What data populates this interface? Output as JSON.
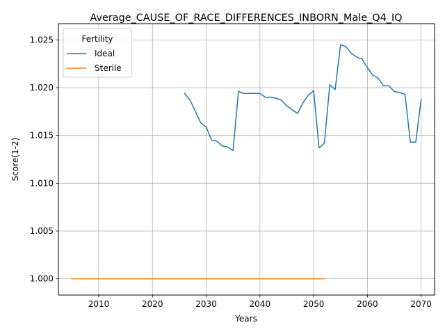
{
  "chart_data": {
    "type": "line",
    "title": "Average_CAUSE_OF_RACE_DIFFERENCES_INBORN_Male_Q4_IQ",
    "xlabel": "Years",
    "ylabel": "Score(1-2)",
    "xlim": [
      2002.5,
      2072.5
    ],
    "ylim": [
      0.9983,
      1.0267
    ],
    "xticks": [
      2010,
      2020,
      2030,
      2040,
      2050,
      2060,
      2070
    ],
    "yticks": [
      1.0,
      1.005,
      1.01,
      1.015,
      1.02,
      1.025
    ],
    "ytick_labels": [
      "1.000",
      "1.005",
      "1.010",
      "1.015",
      "1.020",
      "1.025"
    ],
    "grid": true,
    "legend": {
      "title": "Fertility",
      "placement": "upper-left"
    },
    "series": [
      {
        "name": "Ideal",
        "color": "#1f77b4",
        "x": [
          2026,
          2027,
          2028,
          2029,
          2030,
          2031,
          2032,
          2033,
          2034,
          2035,
          2036,
          2037,
          2038,
          2039,
          2040,
          2041,
          2042,
          2043,
          2044,
          2045,
          2046,
          2047,
          2048,
          2049,
          2050,
          2051,
          2052,
          2053,
          2054,
          2055,
          2056,
          2057,
          2058,
          2059,
          2060,
          2061,
          2062,
          2063,
          2064,
          2065,
          2066,
          2067,
          2068,
          2069,
          2070
        ],
        "y": [
          1.0194,
          1.0187,
          1.0175,
          1.0163,
          1.0159,
          1.0145,
          1.0144,
          1.0139,
          1.0138,
          1.0134,
          1.0196,
          1.0194,
          1.0194,
          1.0194,
          1.0194,
          1.019,
          1.019,
          1.0189,
          1.0187,
          1.0181,
          1.0177,
          1.0173,
          1.0184,
          1.0192,
          1.0197,
          1.0137,
          1.0142,
          1.0203,
          1.0198,
          1.0245,
          1.0243,
          1.0236,
          1.0232,
          1.023,
          1.0221,
          1.0213,
          1.021,
          1.0202,
          1.0202,
          1.0196,
          1.0195,
          1.0193,
          1.0143,
          1.0143,
          1.0188
        ]
      },
      {
        "name": "Sterile",
        "color": "#ff7f0e",
        "x": [
          2005,
          2010,
          2015,
          2020,
          2025,
          2030,
          2035,
          2040,
          2045,
          2050,
          2052
        ],
        "y": [
          1.0,
          1.0,
          1.0,
          1.0,
          1.0,
          1.0,
          1.0,
          1.0,
          1.0,
          1.0,
          1.0
        ]
      }
    ]
  }
}
